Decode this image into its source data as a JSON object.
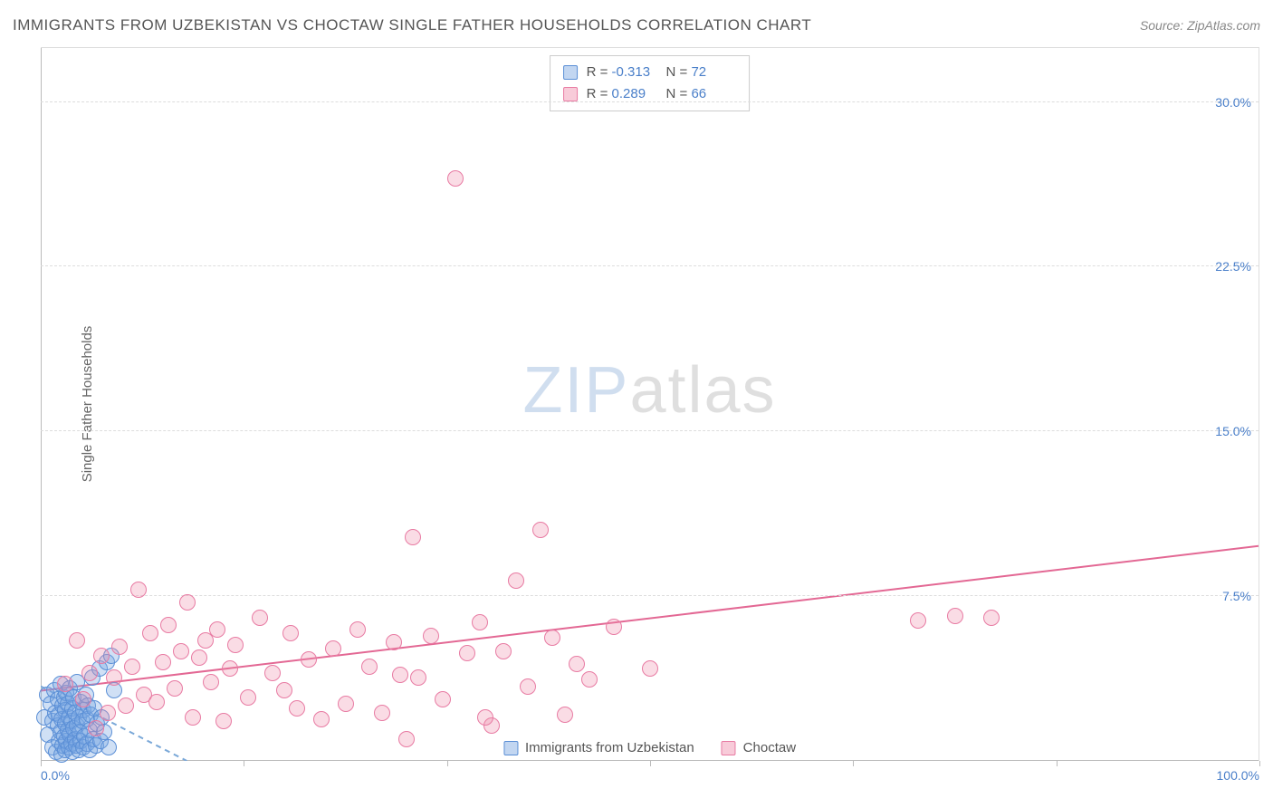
{
  "title": "IMMIGRANTS FROM UZBEKISTAN VS CHOCTAW SINGLE FATHER HOUSEHOLDS CORRELATION CHART",
  "source": "Source: ZipAtlas.com",
  "watermark": {
    "part1": "ZIP",
    "part2": "atlas"
  },
  "y_axis_label": "Single Father Households",
  "chart": {
    "type": "scatter",
    "background_color": "#ffffff",
    "grid_color": "#dddddd",
    "axis_color": "#bbbbbb",
    "tick_label_color": "#4a7fc9",
    "xlim": [
      0,
      100
    ],
    "ylim": [
      0,
      32.5
    ],
    "x_ticks": [
      0,
      16.67,
      33.33,
      50,
      66.67,
      83.33,
      100
    ],
    "x_tick_labels": {
      "0": "0.0%",
      "100": "100.0%"
    },
    "y_ticks": [
      7.5,
      15.0,
      22.5,
      30.0
    ],
    "y_tick_labels": [
      "7.5%",
      "15.0%",
      "22.5%",
      "30.0%"
    ],
    "point_radius": 9
  },
  "series": [
    {
      "name": "Immigrants from Uzbekistan",
      "legend_label": "Immigrants from Uzbekistan",
      "fill": "rgba(120,165,225,0.35)",
      "stroke": "#5b8fd6",
      "swatch_fill": "rgba(120,165,225,0.45)",
      "R": "-0.313",
      "N": "72",
      "trend": {
        "dash": "6 5",
        "color": "#7aa8d8",
        "x1": 0,
        "y1": 3.4,
        "x2": 12,
        "y2": 0.0
      },
      "points": [
        [
          0.3,
          2.0
        ],
        [
          0.5,
          3.0
        ],
        [
          0.6,
          1.2
        ],
        [
          0.8,
          2.6
        ],
        [
          1.0,
          0.6
        ],
        [
          1.0,
          1.8
        ],
        [
          1.1,
          3.2
        ],
        [
          1.2,
          2.2
        ],
        [
          1.3,
          0.4
        ],
        [
          1.4,
          1.6
        ],
        [
          1.4,
          2.8
        ],
        [
          1.5,
          0.9
        ],
        [
          1.5,
          2.1
        ],
        [
          1.6,
          1.3
        ],
        [
          1.6,
          3.5
        ],
        [
          1.7,
          0.3
        ],
        [
          1.7,
          1.9
        ],
        [
          1.8,
          2.5
        ],
        [
          1.8,
          0.7
        ],
        [
          1.9,
          1.1
        ],
        [
          1.9,
          2.9
        ],
        [
          2.0,
          0.5
        ],
        [
          2.0,
          1.7
        ],
        [
          2.0,
          2.3
        ],
        [
          2.1,
          3.1
        ],
        [
          2.1,
          0.9
        ],
        [
          2.2,
          1.4
        ],
        [
          2.2,
          2.6
        ],
        [
          2.3,
          0.6
        ],
        [
          2.3,
          2.0
        ],
        [
          2.4,
          1.2
        ],
        [
          2.4,
          3.3
        ],
        [
          2.5,
          0.8
        ],
        [
          2.5,
          1.8
        ],
        [
          2.6,
          2.4
        ],
        [
          2.6,
          0.4
        ],
        [
          2.7,
          1.5
        ],
        [
          2.7,
          2.9
        ],
        [
          2.8,
          1.0
        ],
        [
          2.8,
          2.2
        ],
        [
          2.9,
          0.7
        ],
        [
          3.0,
          1.6
        ],
        [
          3.0,
          3.6
        ],
        [
          3.1,
          2.0
        ],
        [
          3.1,
          0.5
        ],
        [
          3.2,
          1.3
        ],
        [
          3.3,
          2.7
        ],
        [
          3.3,
          0.9
        ],
        [
          3.4,
          1.8
        ],
        [
          3.5,
          0.6
        ],
        [
          3.5,
          2.3
        ],
        [
          3.6,
          1.1
        ],
        [
          3.7,
          3.0
        ],
        [
          3.8,
          0.8
        ],
        [
          3.8,
          1.9
        ],
        [
          3.9,
          2.5
        ],
        [
          4.0,
          1.4
        ],
        [
          4.0,
          0.5
        ],
        [
          4.1,
          2.1
        ],
        [
          4.2,
          3.8
        ],
        [
          4.3,
          1.0
        ],
        [
          4.4,
          2.4
        ],
        [
          4.5,
          0.7
        ],
        [
          4.6,
          1.7
        ],
        [
          4.8,
          4.2
        ],
        [
          4.9,
          0.9
        ],
        [
          5.0,
          2.0
        ],
        [
          5.2,
          1.3
        ],
        [
          5.4,
          4.5
        ],
        [
          5.6,
          0.6
        ],
        [
          5.8,
          4.8
        ],
        [
          6.0,
          3.2
        ]
      ]
    },
    {
      "name": "Choctaw",
      "legend_label": "Choctaw",
      "fill": "rgba(240,140,170,0.30)",
      "stroke": "#e87ba3",
      "swatch_fill": "rgba(240,140,170,0.45)",
      "R": "0.289",
      "N": "66",
      "trend": {
        "dash": "0",
        "color": "#e36894",
        "x1": 0,
        "y1": 3.2,
        "x2": 100,
        "y2": 9.8
      },
      "points": [
        [
          2.0,
          3.5
        ],
        [
          3.0,
          5.5
        ],
        [
          3.5,
          2.8
        ],
        [
          4.0,
          4.0
        ],
        [
          4.5,
          1.5
        ],
        [
          5.0,
          4.8
        ],
        [
          5.5,
          2.2
        ],
        [
          6.0,
          3.8
        ],
        [
          6.5,
          5.2
        ],
        [
          7.0,
          2.5
        ],
        [
          7.5,
          4.3
        ],
        [
          8.0,
          7.8
        ],
        [
          8.5,
          3.0
        ],
        [
          9.0,
          5.8
        ],
        [
          9.5,
          2.7
        ],
        [
          10.0,
          4.5
        ],
        [
          10.5,
          6.2
        ],
        [
          11.0,
          3.3
        ],
        [
          11.5,
          5.0
        ],
        [
          12.0,
          7.2
        ],
        [
          12.5,
          2.0
        ],
        [
          13.0,
          4.7
        ],
        [
          13.5,
          5.5
        ],
        [
          14.0,
          3.6
        ],
        [
          14.5,
          6.0
        ],
        [
          15.0,
          1.8
        ],
        [
          15.5,
          4.2
        ],
        [
          16.0,
          5.3
        ],
        [
          17.0,
          2.9
        ],
        [
          18.0,
          6.5
        ],
        [
          19.0,
          4.0
        ],
        [
          20.0,
          3.2
        ],
        [
          20.5,
          5.8
        ],
        [
          21.0,
          2.4
        ],
        [
          22.0,
          4.6
        ],
        [
          23.0,
          1.9
        ],
        [
          24.0,
          5.1
        ],
        [
          25.0,
          2.6
        ],
        [
          26.0,
          6.0
        ],
        [
          27.0,
          4.3
        ],
        [
          28.0,
          2.2
        ],
        [
          29.0,
          5.4
        ],
        [
          30.0,
          1.0
        ],
        [
          30.5,
          10.2
        ],
        [
          31.0,
          3.8
        ],
        [
          32.0,
          5.7
        ],
        [
          33.0,
          2.8
        ],
        [
          34.0,
          26.5
        ],
        [
          35.0,
          4.9
        ],
        [
          36.0,
          6.3
        ],
        [
          37.0,
          1.6
        ],
        [
          38.0,
          5.0
        ],
        [
          39.0,
          8.2
        ],
        [
          40.0,
          3.4
        ],
        [
          41.0,
          10.5
        ],
        [
          42.0,
          5.6
        ],
        [
          43.0,
          2.1
        ],
        [
          44.0,
          4.4
        ],
        [
          45.0,
          3.7
        ],
        [
          47.0,
          6.1
        ],
        [
          50.0,
          4.2
        ],
        [
          72.0,
          6.4
        ],
        [
          75.0,
          6.6
        ],
        [
          78.0,
          6.5
        ],
        [
          36.5,
          2.0
        ],
        [
          29.5,
          3.9
        ]
      ]
    }
  ],
  "stat_box": {
    "r_label": "R =",
    "n_label": "N ="
  },
  "bottom_legend_labels": [
    "Immigrants from Uzbekistan",
    "Choctaw"
  ]
}
